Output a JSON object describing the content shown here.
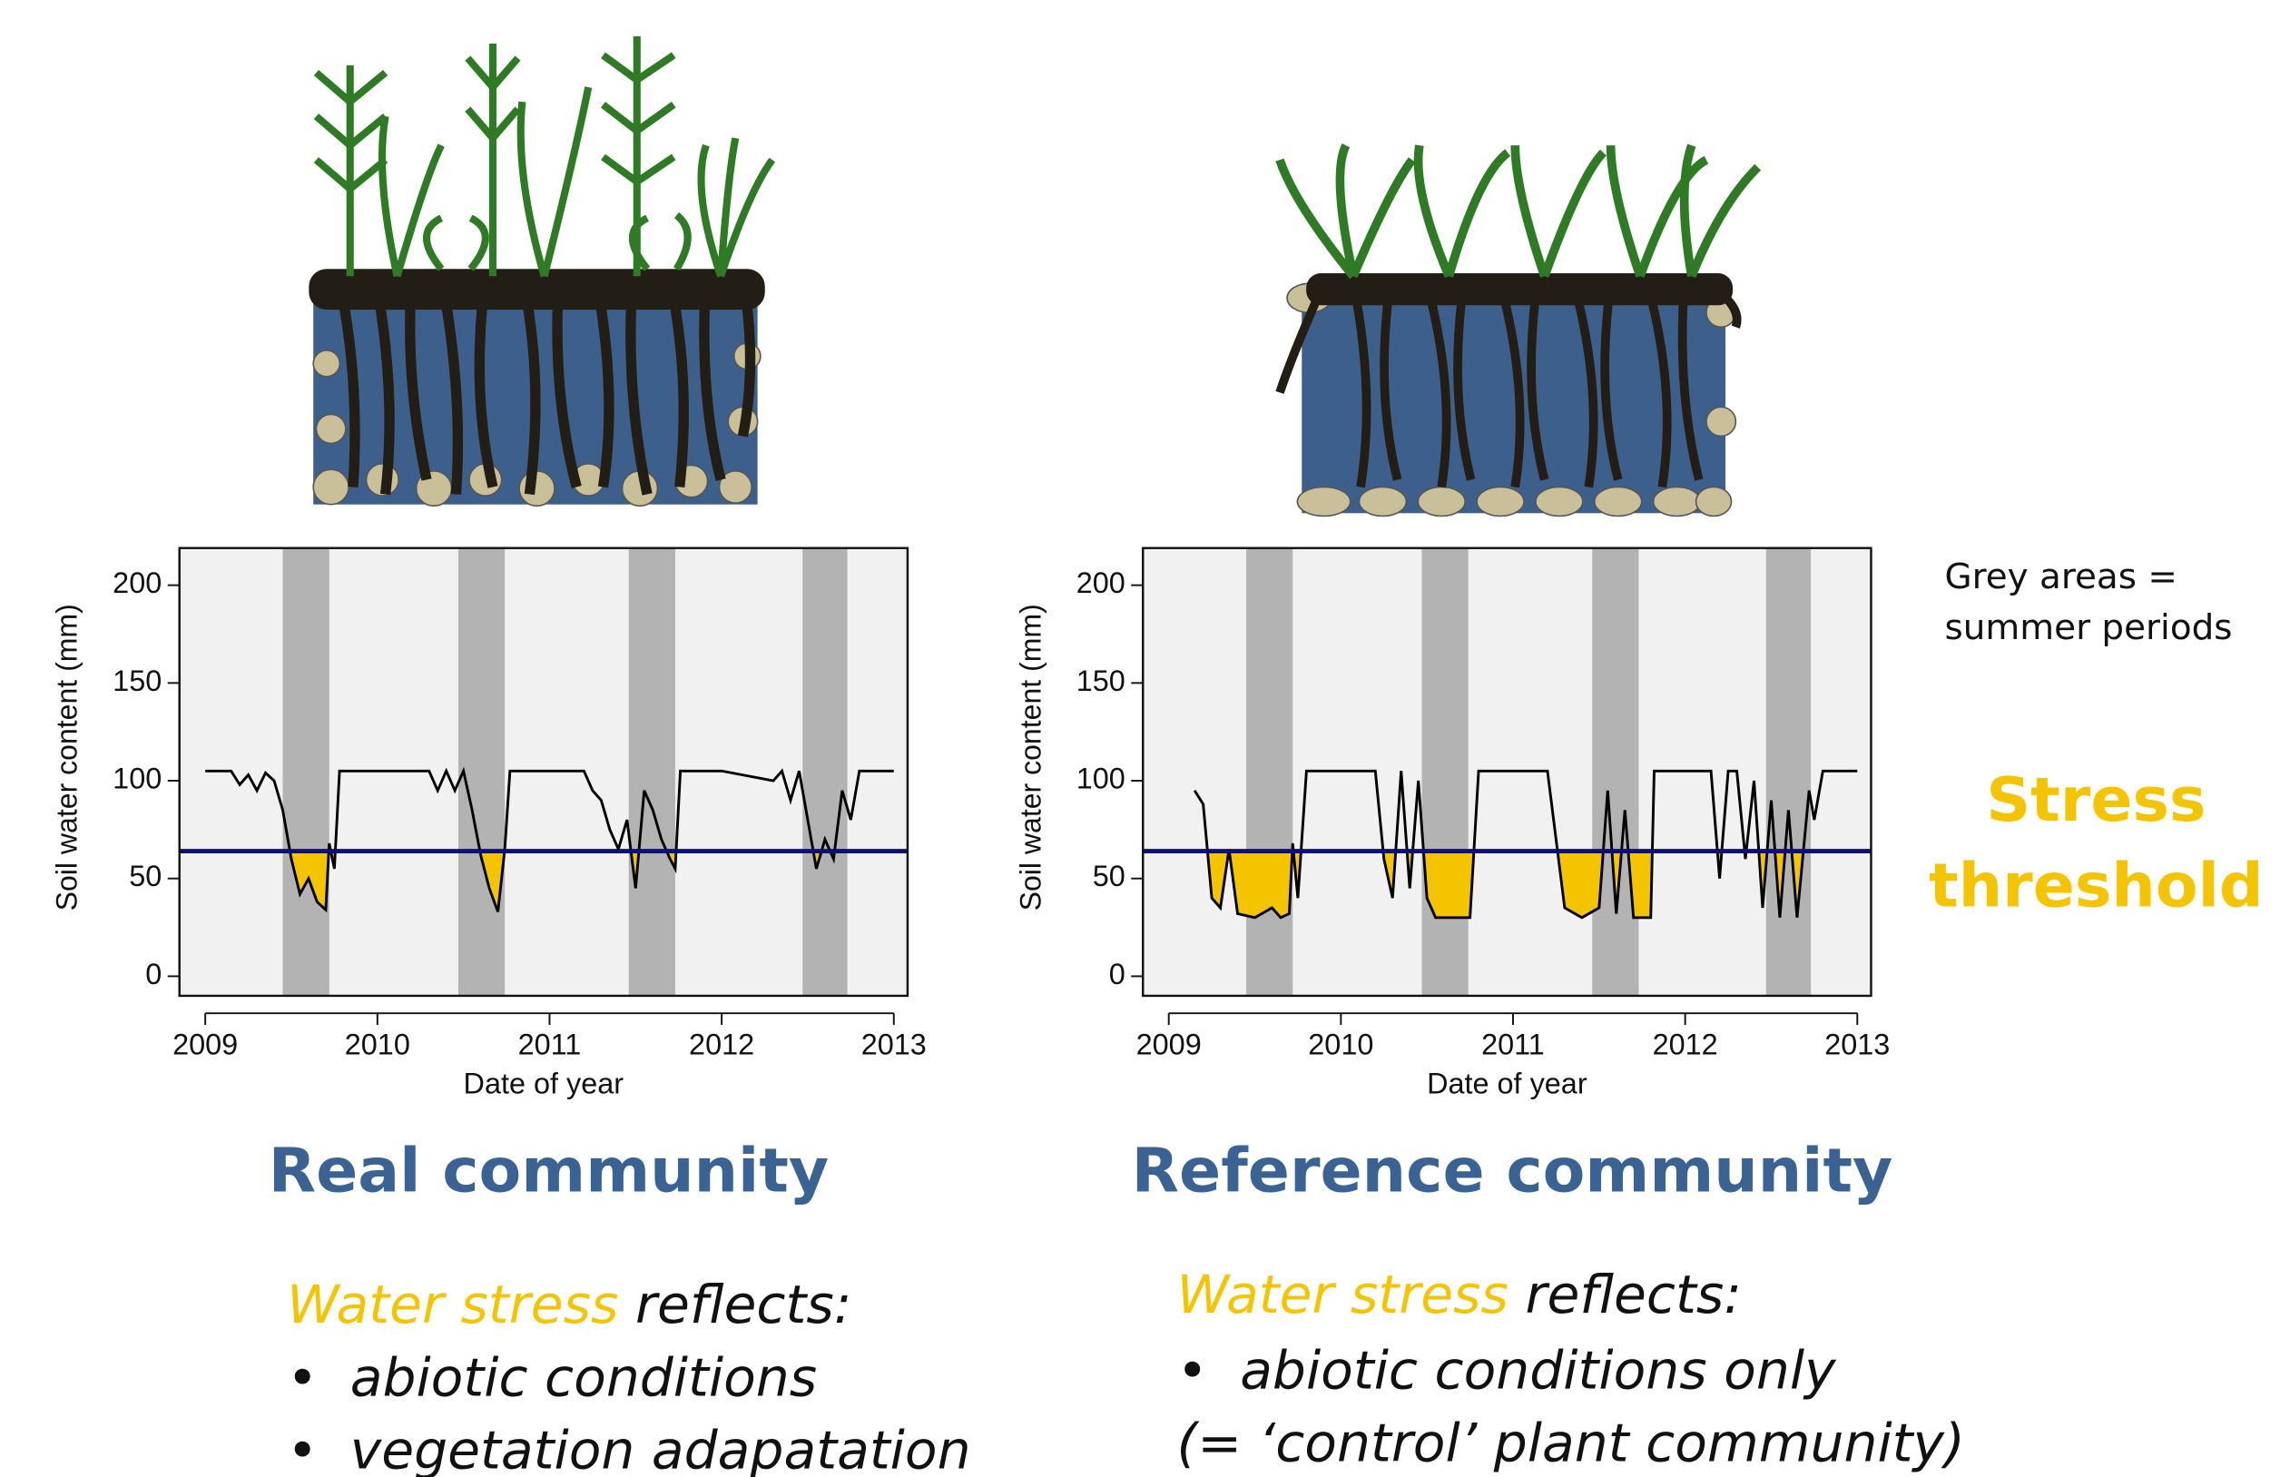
{
  "chart_data": [
    {
      "type": "line",
      "x_label": "Date of year",
      "y_label": "Soil water content (mm)",
      "xlim": [
        2008.85,
        2013.08
      ],
      "xticks": [
        2009,
        2010,
        2011,
        2012,
        2013
      ],
      "ylim": [
        -10,
        219
      ],
      "yticks": [
        0,
        50,
        100,
        150,
        200
      ],
      "color": "#000000",
      "threshold": 64,
      "threshold_color": "#101070",
      "fill_color": "#f5c400",
      "summer_periods": [
        [
          2009.45,
          2009.72
        ],
        [
          2010.47,
          2010.74
        ],
        [
          2011.46,
          2011.73
        ],
        [
          2012.47,
          2012.73
        ]
      ],
      "summer_color": "#b3b3b3",
      "x": [
        2009.0,
        2009.15,
        2009.2,
        2009.25,
        2009.3,
        2009.35,
        2009.4,
        2009.45,
        2009.5,
        2009.55,
        2009.6,
        2009.65,
        2009.7,
        2009.72,
        2009.75,
        2009.78,
        2010.0,
        2010.3,
        2010.35,
        2010.4,
        2010.45,
        2010.5,
        2010.55,
        2010.6,
        2010.65,
        2010.7,
        2010.74,
        2010.77,
        2011.0,
        2011.2,
        2011.25,
        2011.3,
        2011.35,
        2011.4,
        2011.45,
        2011.5,
        2011.55,
        2011.6,
        2011.65,
        2011.7,
        2011.73,
        2011.76,
        2012.0,
        2012.3,
        2012.35,
        2012.4,
        2012.45,
        2012.5,
        2012.55,
        2012.6,
        2012.65,
        2012.7,
        2012.75,
        2012.8,
        2013.0
      ],
      "values": [
        105,
        105,
        98,
        103,
        95,
        104,
        100,
        85,
        60,
        42,
        50,
        38,
        34,
        68,
        55,
        105,
        105,
        105,
        95,
        105,
        95,
        105,
        85,
        62,
        45,
        33,
        65,
        105,
        105,
        105,
        95,
        90,
        75,
        65,
        80,
        45,
        95,
        85,
        70,
        60,
        55,
        105,
        105,
        100,
        105,
        90,
        105,
        80,
        55,
        70,
        60,
        95,
        80,
        105,
        105
      ]
    },
    {
      "type": "line",
      "x_label": "Date of year",
      "y_label": "Soil water content (mm)",
      "xlim": [
        2008.85,
        2013.08
      ],
      "xticks": [
        2009,
        2010,
        2011,
        2012,
        2013
      ],
      "ylim": [
        -10,
        219
      ],
      "yticks": [
        0,
        50,
        100,
        150,
        200
      ],
      "color": "#000000",
      "threshold": 64,
      "threshold_color": "#101070",
      "fill_color": "#f5c400",
      "summer_periods": [
        [
          2009.45,
          2009.72
        ],
        [
          2010.47,
          2010.74
        ],
        [
          2011.46,
          2011.73
        ],
        [
          2012.47,
          2012.73
        ]
      ],
      "summer_color": "#b3b3b3",
      "x": [
        2009.15,
        2009.2,
        2009.25,
        2009.3,
        2009.35,
        2009.4,
        2009.5,
        2009.6,
        2009.65,
        2009.7,
        2009.72,
        2009.75,
        2009.8,
        2010.2,
        2010.25,
        2010.3,
        2010.35,
        2010.4,
        2010.45,
        2010.5,
        2010.55,
        2010.65,
        2010.75,
        2010.8,
        2011.2,
        2011.25,
        2011.3,
        2011.4,
        2011.5,
        2011.55,
        2011.6,
        2011.65,
        2011.7,
        2011.8,
        2011.82,
        2012.15,
        2012.2,
        2012.25,
        2012.3,
        2012.35,
        2012.4,
        2012.45,
        2012.5,
        2012.55,
        2012.6,
        2012.65,
        2012.72,
        2012.75,
        2012.8,
        2013.0
      ],
      "values": [
        95,
        88,
        40,
        35,
        65,
        32,
        30,
        35,
        30,
        32,
        68,
        40,
        105,
        105,
        60,
        40,
        105,
        45,
        100,
        40,
        30,
        30,
        30,
        105,
        105,
        70,
        35,
        30,
        35,
        95,
        32,
        85,
        30,
        30,
        105,
        105,
        50,
        105,
        105,
        60,
        100,
        35,
        90,
        30,
        85,
        30,
        95,
        80,
        105,
        105
      ]
    }
  ],
  "panels": [
    {
      "title": "Real community",
      "stress_term": "Water stress",
      "stress_rest": "reflects:",
      "bullets": [
        "abiotic conditions",
        "vegetation adapatation"
      ]
    },
    {
      "title": "Reference community",
      "stress_term": "Water stress",
      "stress_rest": "reflects:",
      "bullets": [
        "abiotic conditions only"
      ],
      "note": "(= ‘control’ plant community)"
    }
  ],
  "legend_note": [
    "Grey areas =",
    "summer periods"
  ],
  "threshold_label": [
    "Stress",
    "threshold"
  ]
}
